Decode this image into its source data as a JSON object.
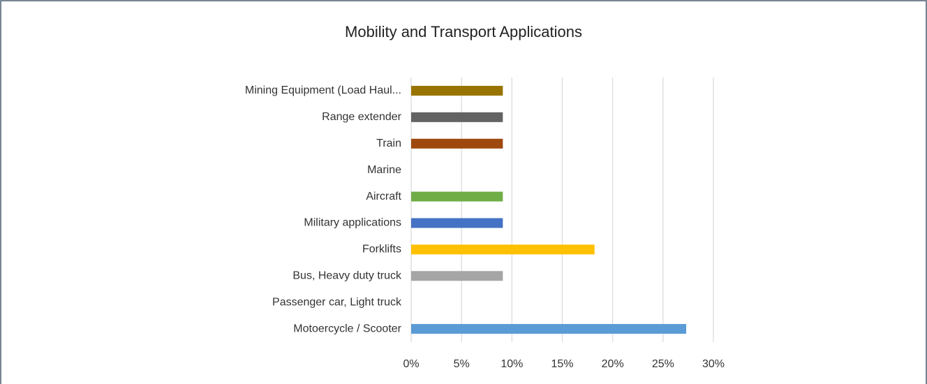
{
  "chart_data": {
    "type": "hbar",
    "title": "Mobility and Transport Applications",
    "categories": [
      "Motoercycle / Scooter",
      "Passenger car, Light truck",
      "Bus, Heavy duty truck",
      "Forklifts",
      "Military applications",
      "Aircraft",
      "Marine",
      "Train",
      "Range extender",
      "Mining Equipment (Load Haul..."
    ],
    "values": [
      27.3,
      0,
      9.1,
      18.2,
      9.1,
      9.1,
      0,
      9.1,
      9.1,
      9.1
    ],
    "colors": [
      "#5b9bd5",
      "#ed7d31",
      "#a5a5a5",
      "#ffc000",
      "#4472c4",
      "#70ad47",
      "#255e91",
      "#9e480e",
      "#636363",
      "#997300"
    ],
    "xlim": [
      0,
      30
    ],
    "xticks": [
      {
        "value": 0,
        "label": "0%"
      },
      {
        "value": 5,
        "label": "5%"
      },
      {
        "value": 10,
        "label": "10%"
      },
      {
        "value": 15,
        "label": "15%"
      },
      {
        "value": 20,
        "label": "20%"
      },
      {
        "value": 25,
        "label": "25%"
      },
      {
        "value": 30,
        "label": "30%"
      }
    ],
    "grid": true
  }
}
